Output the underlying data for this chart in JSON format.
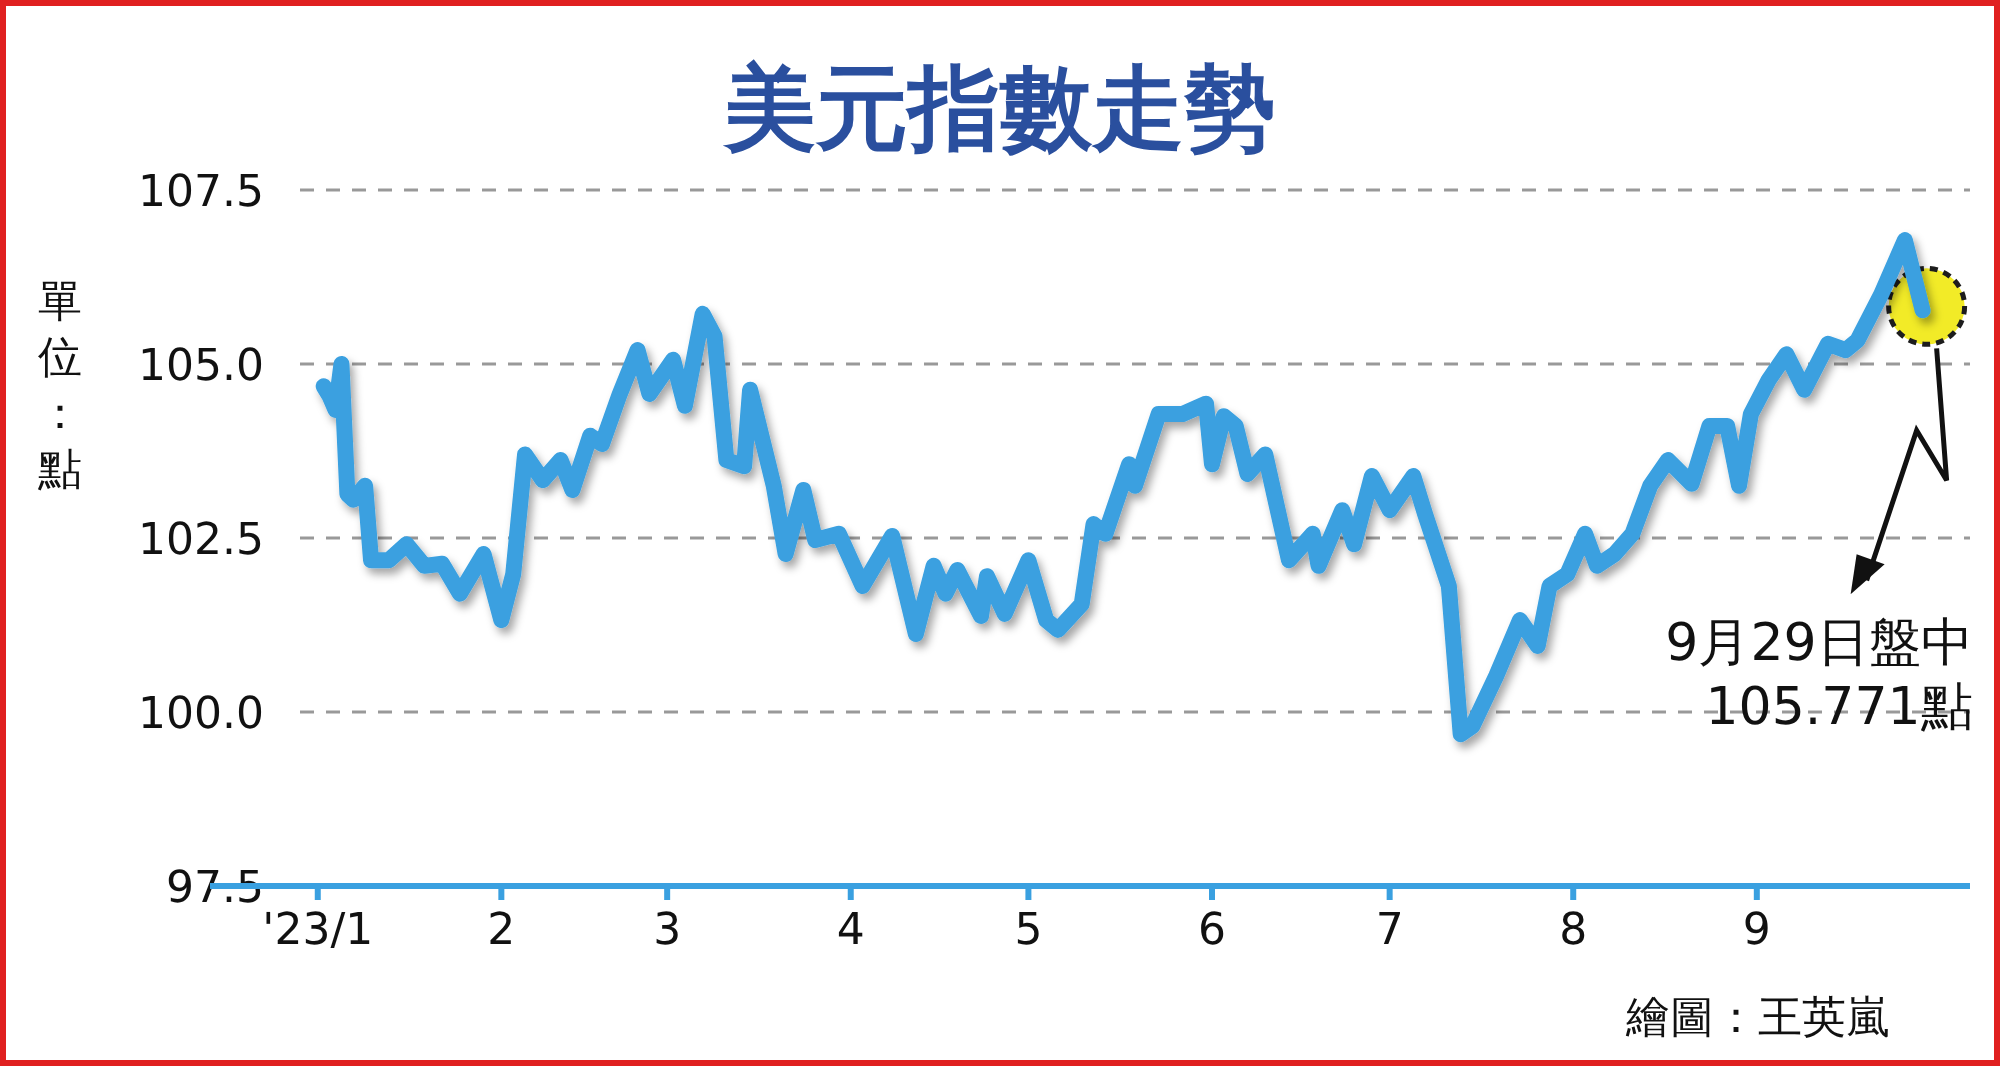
{
  "chart_data": {
    "type": "line",
    "title": "美元指數走勢",
    "ylabel": "單位：點",
    "x": [
      "2023-01-02",
      "2023-01-03",
      "2023-01-04",
      "2023-01-05",
      "2023-01-06",
      "2023-01-07",
      "2023-01-09",
      "2023-01-10",
      "2023-01-13",
      "2023-01-16",
      "2023-01-19",
      "2023-01-22",
      "2023-01-25",
      "2023-01-29",
      "2023-02-01",
      "2023-02-03",
      "2023-02-05",
      "2023-02-08",
      "2023-02-11",
      "2023-02-13",
      "2023-02-16",
      "2023-02-18",
      "2023-02-21",
      "2023-02-24",
      "2023-02-26",
      "2023-03-02",
      "2023-03-04",
      "2023-03-07",
      "2023-03-09",
      "2023-03-11",
      "2023-03-14",
      "2023-03-15",
      "2023-03-19",
      "2023-03-21",
      "2023-03-24",
      "2023-03-26",
      "2023-03-30",
      "2023-04-03",
      "2023-04-08",
      "2023-04-12",
      "2023-04-15",
      "2023-04-17",
      "2023-04-19",
      "2023-04-23",
      "2023-04-24",
      "2023-04-27",
      "2023-05-01",
      "2023-05-04",
      "2023-05-06",
      "2023-05-10",
      "2023-05-12",
      "2023-05-14",
      "2023-05-18",
      "2023-05-19",
      "2023-05-23",
      "2023-05-27",
      "2023-05-31",
      "2023-06-01",
      "2023-06-03",
      "2023-06-05",
      "2023-06-07",
      "2023-06-10",
      "2023-06-14",
      "2023-06-18",
      "2023-06-19",
      "2023-06-23",
      "2023-06-25",
      "2023-06-28",
      "2023-07-01",
      "2023-07-05",
      "2023-07-07",
      "2023-07-11",
      "2023-07-13",
      "2023-07-15",
      "2023-07-19",
      "2023-07-23",
      "2023-07-26",
      "2023-07-28",
      "2023-07-31",
      "2023-08-03",
      "2023-08-05",
      "2023-08-08",
      "2023-08-11",
      "2023-08-14",
      "2023-08-17",
      "2023-08-21",
      "2023-08-24",
      "2023-08-27",
      "2023-08-29",
      "2023-08-31",
      "2023-09-03",
      "2023-09-06",
      "2023-09-09",
      "2023-09-13",
      "2023-09-16",
      "2023-09-18",
      "2023-09-22",
      "2023-09-26",
      "2023-09-29"
    ],
    "series": [
      {
        "color": "#3aa0e0",
        "values": [
          104.68,
          104.54,
          104.34,
          105.0,
          103.13,
          103.05,
          103.25,
          102.18,
          102.18,
          102.41,
          102.1,
          102.13,
          101.7,
          102.27,
          101.32,
          101.98,
          103.7,
          103.33,
          103.62,
          103.19,
          103.97,
          103.85,
          104.57,
          105.2,
          104.57,
          105.06,
          104.4,
          105.72,
          105.4,
          103.62,
          103.53,
          104.63,
          103.25,
          102.27,
          103.19,
          102.47,
          102.56,
          101.81,
          102.53,
          101.12,
          102.1,
          101.7,
          102.04,
          101.38,
          101.95,
          101.41,
          102.18,
          101.32,
          101.18,
          101.55,
          102.7,
          102.56,
          103.56,
          103.25,
          104.28,
          104.28,
          104.43,
          103.56,
          104.25,
          104.11,
          103.42,
          103.7,
          102.18,
          102.56,
          102.1,
          102.9,
          102.41,
          103.39,
          102.9,
          103.39,
          102.84,
          101.81,
          99.68,
          99.8,
          100.52,
          101.32,
          100.95,
          101.81,
          101.98,
          102.56,
          102.1,
          102.27,
          102.56,
          103.25,
          103.62,
          103.28,
          104.11,
          104.11,
          103.25,
          104.28,
          104.77,
          105.14,
          104.63,
          105.29,
          105.2,
          105.34,
          106.0,
          106.78,
          105.771
        ]
      }
    ],
    "xlim": [
      "2022-12-29",
      "2023-10-07"
    ],
    "xticks": [
      {
        "value": "2023-01-01",
        "label": "'23/1"
      },
      {
        "value": "2023-02-01",
        "label": "2"
      },
      {
        "value": "2023-03-01",
        "label": "3"
      },
      {
        "value": "2023-04-01",
        "label": "4"
      },
      {
        "value": "2023-05-01",
        "label": "5"
      },
      {
        "value": "2023-06-01",
        "label": "6"
      },
      {
        "value": "2023-07-01",
        "label": "7"
      },
      {
        "value": "2023-08-01",
        "label": "8"
      },
      {
        "value": "2023-09-01",
        "label": "9"
      }
    ],
    "ylim": [
      97.5,
      107.5
    ],
    "yticks": [
      {
        "value": 97.5,
        "label": "97.5"
      },
      {
        "value": 100,
        "label": "100.0"
      },
      {
        "value": 102.5,
        "label": "102.5"
      },
      {
        "value": 105,
        "label": "105.0"
      },
      {
        "value": 107.5,
        "label": "107.5"
      }
    ],
    "grid": "y",
    "line_style": "solid",
    "marker": "none",
    "annotations": [
      "9月29日盤中\n105.771點",
      "繪圖：王英嵐"
    ]
  }
}
